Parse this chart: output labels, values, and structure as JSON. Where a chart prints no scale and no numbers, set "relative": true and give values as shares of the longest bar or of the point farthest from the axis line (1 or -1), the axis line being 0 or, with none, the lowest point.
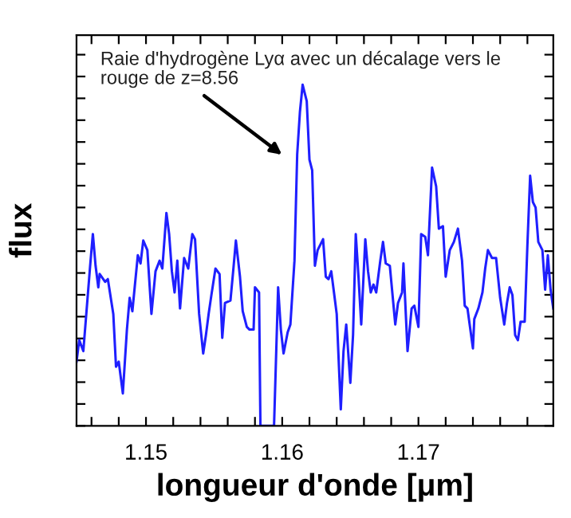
{
  "chart_data": {
    "type": "line",
    "relative": true,
    "xlabel": "longueur d'onde [μm]",
    "ylabel": "flux",
    "xlim": [
      1.1449,
      1.1799
    ],
    "xticks": [
      {
        "value": 1.146,
        "label": null
      },
      {
        "value": 1.148,
        "label": null
      },
      1.15,
      {
        "value": 1.152,
        "label": null
      },
      {
        "value": 1.154,
        "label": null
      },
      {
        "value": 1.156,
        "label": null
      },
      {
        "value": 1.158,
        "label": null
      },
      1.16,
      {
        "value": 1.162,
        "label": null
      },
      {
        "value": 1.164,
        "label": null
      },
      {
        "value": 1.166,
        "label": null
      },
      {
        "value": 1.168,
        "label": null
      },
      1.17,
      {
        "value": 1.172,
        "label": null
      },
      {
        "value": 1.174,
        "label": null
      },
      {
        "value": 1.176,
        "label": null
      },
      {
        "value": 1.178,
        "label": null
      }
    ],
    "grid": false,
    "legend": false,
    "marker": "none",
    "line_style": "solid",
    "annotations": [
      "Raie d'hydrogène Lyα avec un décalage vers le\nrouge de z=8.56"
    ],
    "series": [
      {
        "color": "#1f1fff",
        "x": [
          1.1449,
          1.1451,
          1.1454,
          1.1459,
          1.1461,
          1.1463,
          1.1465,
          1.1466,
          1.147,
          1.1472,
          1.1476,
          1.1478,
          1.148,
          1.1483,
          1.1486,
          1.1488,
          1.149,
          1.1494,
          1.1496,
          1.1498,
          1.1501,
          1.1504,
          1.1507,
          1.151,
          1.1512,
          1.1515,
          1.1517,
          1.1519,
          1.1521,
          1.1523,
          1.1525,
          1.1528,
          1.1531,
          1.1534,
          1.1536,
          1.1539,
          1.1542,
          1.1544,
          1.1546,
          1.1548,
          1.1551,
          1.1554,
          1.1556,
          1.1558,
          1.1562,
          1.1564,
          1.1566,
          1.1569,
          1.1571,
          1.1574,
          1.1576,
          1.1579,
          1.158,
          1.1583,
          1.1584,
          1.1594,
          1.1597,
          1.1599,
          1.1601,
          1.1604,
          1.1606,
          1.1609,
          1.1611,
          1.1613,
          1.1615,
          1.1618,
          1.162,
          1.1622,
          1.1624,
          1.1626,
          1.163,
          1.1632,
          1.1634,
          1.1636,
          1.1638,
          1.164,
          1.1643,
          1.1645,
          1.1647,
          1.165,
          1.1652,
          1.1654,
          1.1656,
          1.1658,
          1.1661,
          1.1663,
          1.1665,
          1.1667,
          1.1669,
          1.1672,
          1.1674,
          1.1676,
          1.1679,
          1.1683,
          1.1685,
          1.1688,
          1.1689,
          1.1692,
          1.1695,
          1.1697,
          1.17,
          1.1702,
          1.1705,
          1.1707,
          1.171,
          1.1713,
          1.1715,
          1.1718,
          1.172,
          1.1723,
          1.1726,
          1.1729,
          1.1732,
          1.1734,
          1.1736,
          1.174,
          1.1741,
          1.1744,
          1.1747,
          1.1749,
          1.1751,
          1.1754,
          1.1757,
          1.176,
          1.1763,
          1.1765,
          1.1767,
          1.1769,
          1.1771,
          1.1773,
          1.1775,
          1.1778,
          1.178,
          1.1782,
          1.1784,
          1.1786,
          1.1788,
          1.1791,
          1.1793,
          1.1795,
          1.1797,
          1.1799
        ],
        "values": [
          0.188,
          0.251,
          0.219,
          0.469,
          0.562,
          0.469,
          0.406,
          0.445,
          0.422,
          0.43,
          0.328,
          0.173,
          0.188,
          0.095,
          0.282,
          0.375,
          0.336,
          0.5,
          0.476,
          0.543,
          0.515,
          0.328,
          0.453,
          0.484,
          0.461,
          0.624,
          0.562,
          0.453,
          0.391,
          0.484,
          0.344,
          0.492,
          0.461,
          0.562,
          0.547,
          0.328,
          0.212,
          0.266,
          0.328,
          0.383,
          0.461,
          0.445,
          0.258,
          0.36,
          0.367,
          0.453,
          0.543,
          0.437,
          0.336,
          0.29,
          0.282,
          0.282,
          0.406,
          0.391,
          0,
          0,
          0.406,
          0.282,
          0.212,
          0.274,
          0.297,
          0.484,
          0.796,
          0.92,
          1.0,
          0.952,
          0.78,
          0.749,
          0.469,
          0.515,
          0.547,
          0.437,
          0.43,
          0.453,
          0.391,
          0.328,
          0.048,
          0.219,
          0.297,
          0.126,
          0.266,
          0.562,
          0.437,
          0.297,
          0.547,
          0.453,
          0.391,
          0.414,
          0.391,
          0.484,
          0.539,
          0.476,
          0.469,
          0.297,
          0.36,
          0.391,
          0.476,
          0.219,
          0.344,
          0.352,
          0.29,
          0.562,
          0.554,
          0.5,
          0.757,
          0.702,
          0.578,
          0.585,
          0.437,
          0.515,
          0.539,
          0.578,
          0.484,
          0.352,
          0.344,
          0.227,
          0.313,
          0.344,
          0.391,
          0.461,
          0.515,
          0.492,
          0.492,
          0.375,
          0.297,
          0.36,
          0.406,
          0.383,
          0.266,
          0.251,
          0.305,
          0.305,
          0.531,
          0.733,
          0.656,
          0.64,
          0.539,
          0.515,
          0.399,
          0.5,
          0.399,
          0.344
        ]
      }
    ]
  }
}
